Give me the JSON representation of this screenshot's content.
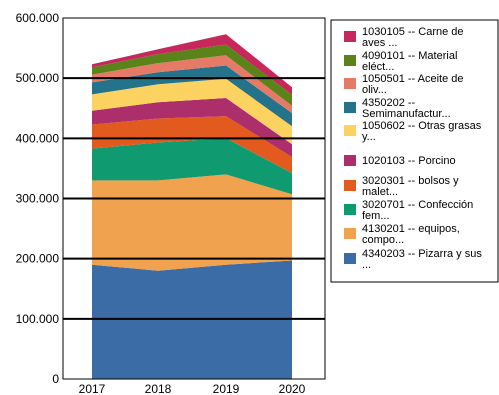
{
  "chart_data": {
    "type": "area",
    "stacked": true,
    "x": [
      "2017",
      "2018",
      "2019",
      "2020"
    ],
    "ylim": [
      0,
      600000
    ],
    "yticks": [
      0,
      100000,
      200000,
      300000,
      400000,
      500000,
      600000
    ],
    "ytick_labels": [
      "0",
      "100.000",
      "200.000",
      "300.000",
      "400.000",
      "500.000",
      "600.000"
    ],
    "grid": true,
    "legend_position": "right",
    "series": [
      {
        "name": "4340203 -- Pizarra y sus ...",
        "color": "#3b6ca5",
        "values": [
          190000,
          180000,
          190000,
          197000
        ]
      },
      {
        "name": "4130201 -- equipos, compo...",
        "color": "#f0a24e",
        "values": [
          140000,
          150000,
          150000,
          110000
        ]
      },
      {
        "name": "3020701 -- Confección fem...",
        "color": "#0f9a6f",
        "values": [
          53000,
          63000,
          60000,
          35000
        ]
      },
      {
        "name": "3020301 -- bolsos y malet...",
        "color": "#e35a1e",
        "values": [
          40000,
          40000,
          37000,
          27000
        ]
      },
      {
        "name": "1020103 -- Porcino",
        "color": "#ac2e6a",
        "values": [
          23000,
          27000,
          30000,
          21000
        ]
      },
      {
        "name": "1050602 -- Otras grasas y...",
        "color": "#fcd261",
        "values": [
          27000,
          30000,
          32000,
          30000
        ]
      },
      {
        "name": "4350202 -- Semimanufactur...",
        "color": "#25728b",
        "values": [
          20000,
          20000,
          22000,
          22000
        ]
      },
      {
        "name": "1050501 -- Aceite de oliv...",
        "color": "#e57a67",
        "values": [
          13000,
          15000,
          17000,
          12000
        ]
      },
      {
        "name": "4090101 -- Material eléct...",
        "color": "#5a831a",
        "values": [
          12000,
          15000,
          18000,
          18000
        ]
      },
      {
        "name": "1030105 -- Carne de aves ...",
        "color": "#c6285c",
        "values": [
          5000,
          8000,
          17000,
          13000
        ]
      }
    ],
    "legend_items": [
      {
        "lines": [
          "1030105 -- Carne de",
          "aves ..."
        ],
        "color": "#c6285c"
      },
      {
        "lines": [
          "4090101 -- Material",
          "eléct..."
        ],
        "color": "#5a831a"
      },
      {
        "lines": [
          "1050501 -- Aceite de",
          "oliv..."
        ],
        "color": "#e57a67"
      },
      {
        "lines": [
          "4350202 --",
          "Semimanufactur..."
        ],
        "color": "#25728b"
      },
      {
        "lines": [
          "1050602 -- Otras grasas",
          "y..."
        ],
        "color": "#fcd261"
      },
      {
        "lines": [
          "1020103 -- Porcino"
        ],
        "color": "#ac2e6a"
      },
      {
        "lines": [
          "3020301 -- bolsos y",
          "malet..."
        ],
        "color": "#e35a1e"
      },
      {
        "lines": [
          "3020701 -- Confección",
          "fem..."
        ],
        "color": "#0f9a6f"
      },
      {
        "lines": [
          "4130201 -- equipos,",
          "compo..."
        ],
        "color": "#f0a24e"
      },
      {
        "lines": [
          "4340203 -- Pizarra y sus",
          "..."
        ],
        "color": "#3b6ca5"
      }
    ]
  }
}
